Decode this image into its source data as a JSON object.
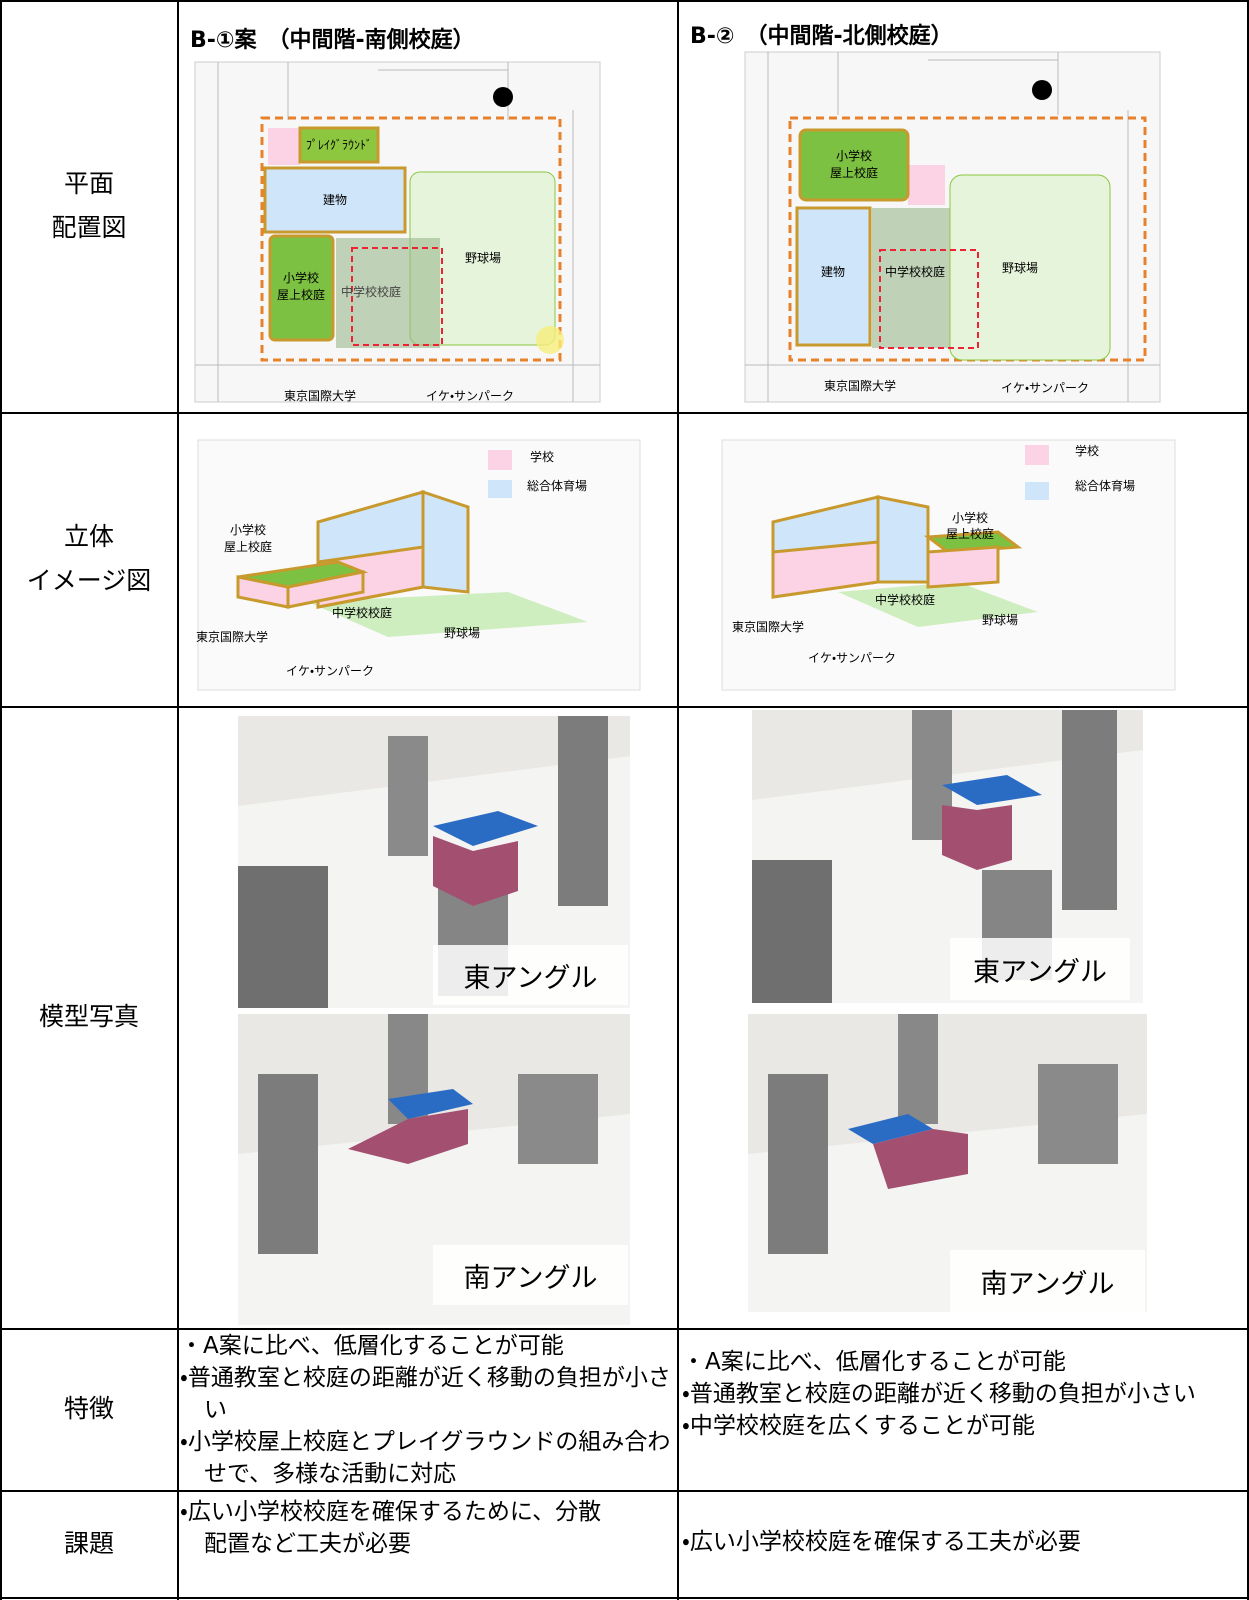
{
  "row_labels": [
    [
      "平面",
      "配置図"
    ],
    [
      "立体",
      "イメージ図"
    ],
    [
      "模型写真"
    ],
    [
      "特徴"
    ],
    [
      "課題"
    ]
  ],
  "columns": [
    {
      "title": "B-①案　（中間階-南側校庭）",
      "plan": {
        "playground": "ﾌﾟﾚｲｸﾞﾗｳﾝﾄﾞ",
        "building": "建物",
        "elementary": [
          "小学校",
          "屋上校庭"
        ],
        "junior": "中学校校庭",
        "baseball": "野球場",
        "univ": "東京国際大学",
        "park": "イケ・サンパーク"
      },
      "iso": {
        "legend_school": "学校",
        "legend_gym": "総合体育場",
        "elementary": [
          "小学校",
          "屋上校庭"
        ],
        "junior": "中学校校庭",
        "baseball": "野球場",
        "univ": "東京国際大学",
        "park": "イケ・サンパーク"
      },
      "photos": [
        "東アングル",
        "南アングル"
      ],
      "features": [
        "・A案に比べ、低層化することが可能",
        "・普通教室と校庭の距離が近く移動の負担が小さい",
        "・小学校屋上校庭とプレイグラウンドの組み合わせで、多様な活動に対応"
      ],
      "issues": [
        "・広い小学校校庭を確保するために、分散配置など工夫が必要"
      ]
    },
    {
      "title": "B-②　（中間階-北側校庭）",
      "plan": {
        "building": "建物",
        "elementary": [
          "小学校",
          "屋上校庭"
        ],
        "junior": "中学校校庭",
        "baseball": "野球場",
        "univ": "東京国際大学",
        "park": "イケ・サンパーク"
      },
      "iso": {
        "legend_school": "学校",
        "legend_gym": "総合体育場",
        "elementary": [
          "小学校",
          "屋上校庭"
        ],
        "junior": "中学校校庭",
        "baseball": "野球場",
        "univ": "東京国際大学",
        "park": "イケ・サンパーク"
      },
      "photos": [
        "東アングル",
        "南アングル"
      ],
      "features": [
        "・A案に比べ、低層化することが可能",
        "・普通教室と校庭の距離が近く移動の負担が小さい",
        "・中学校校庭を広くすることが可能"
      ],
      "issues": [
        "・広い小学校校庭を確保する工夫が必要"
      ]
    }
  ]
}
